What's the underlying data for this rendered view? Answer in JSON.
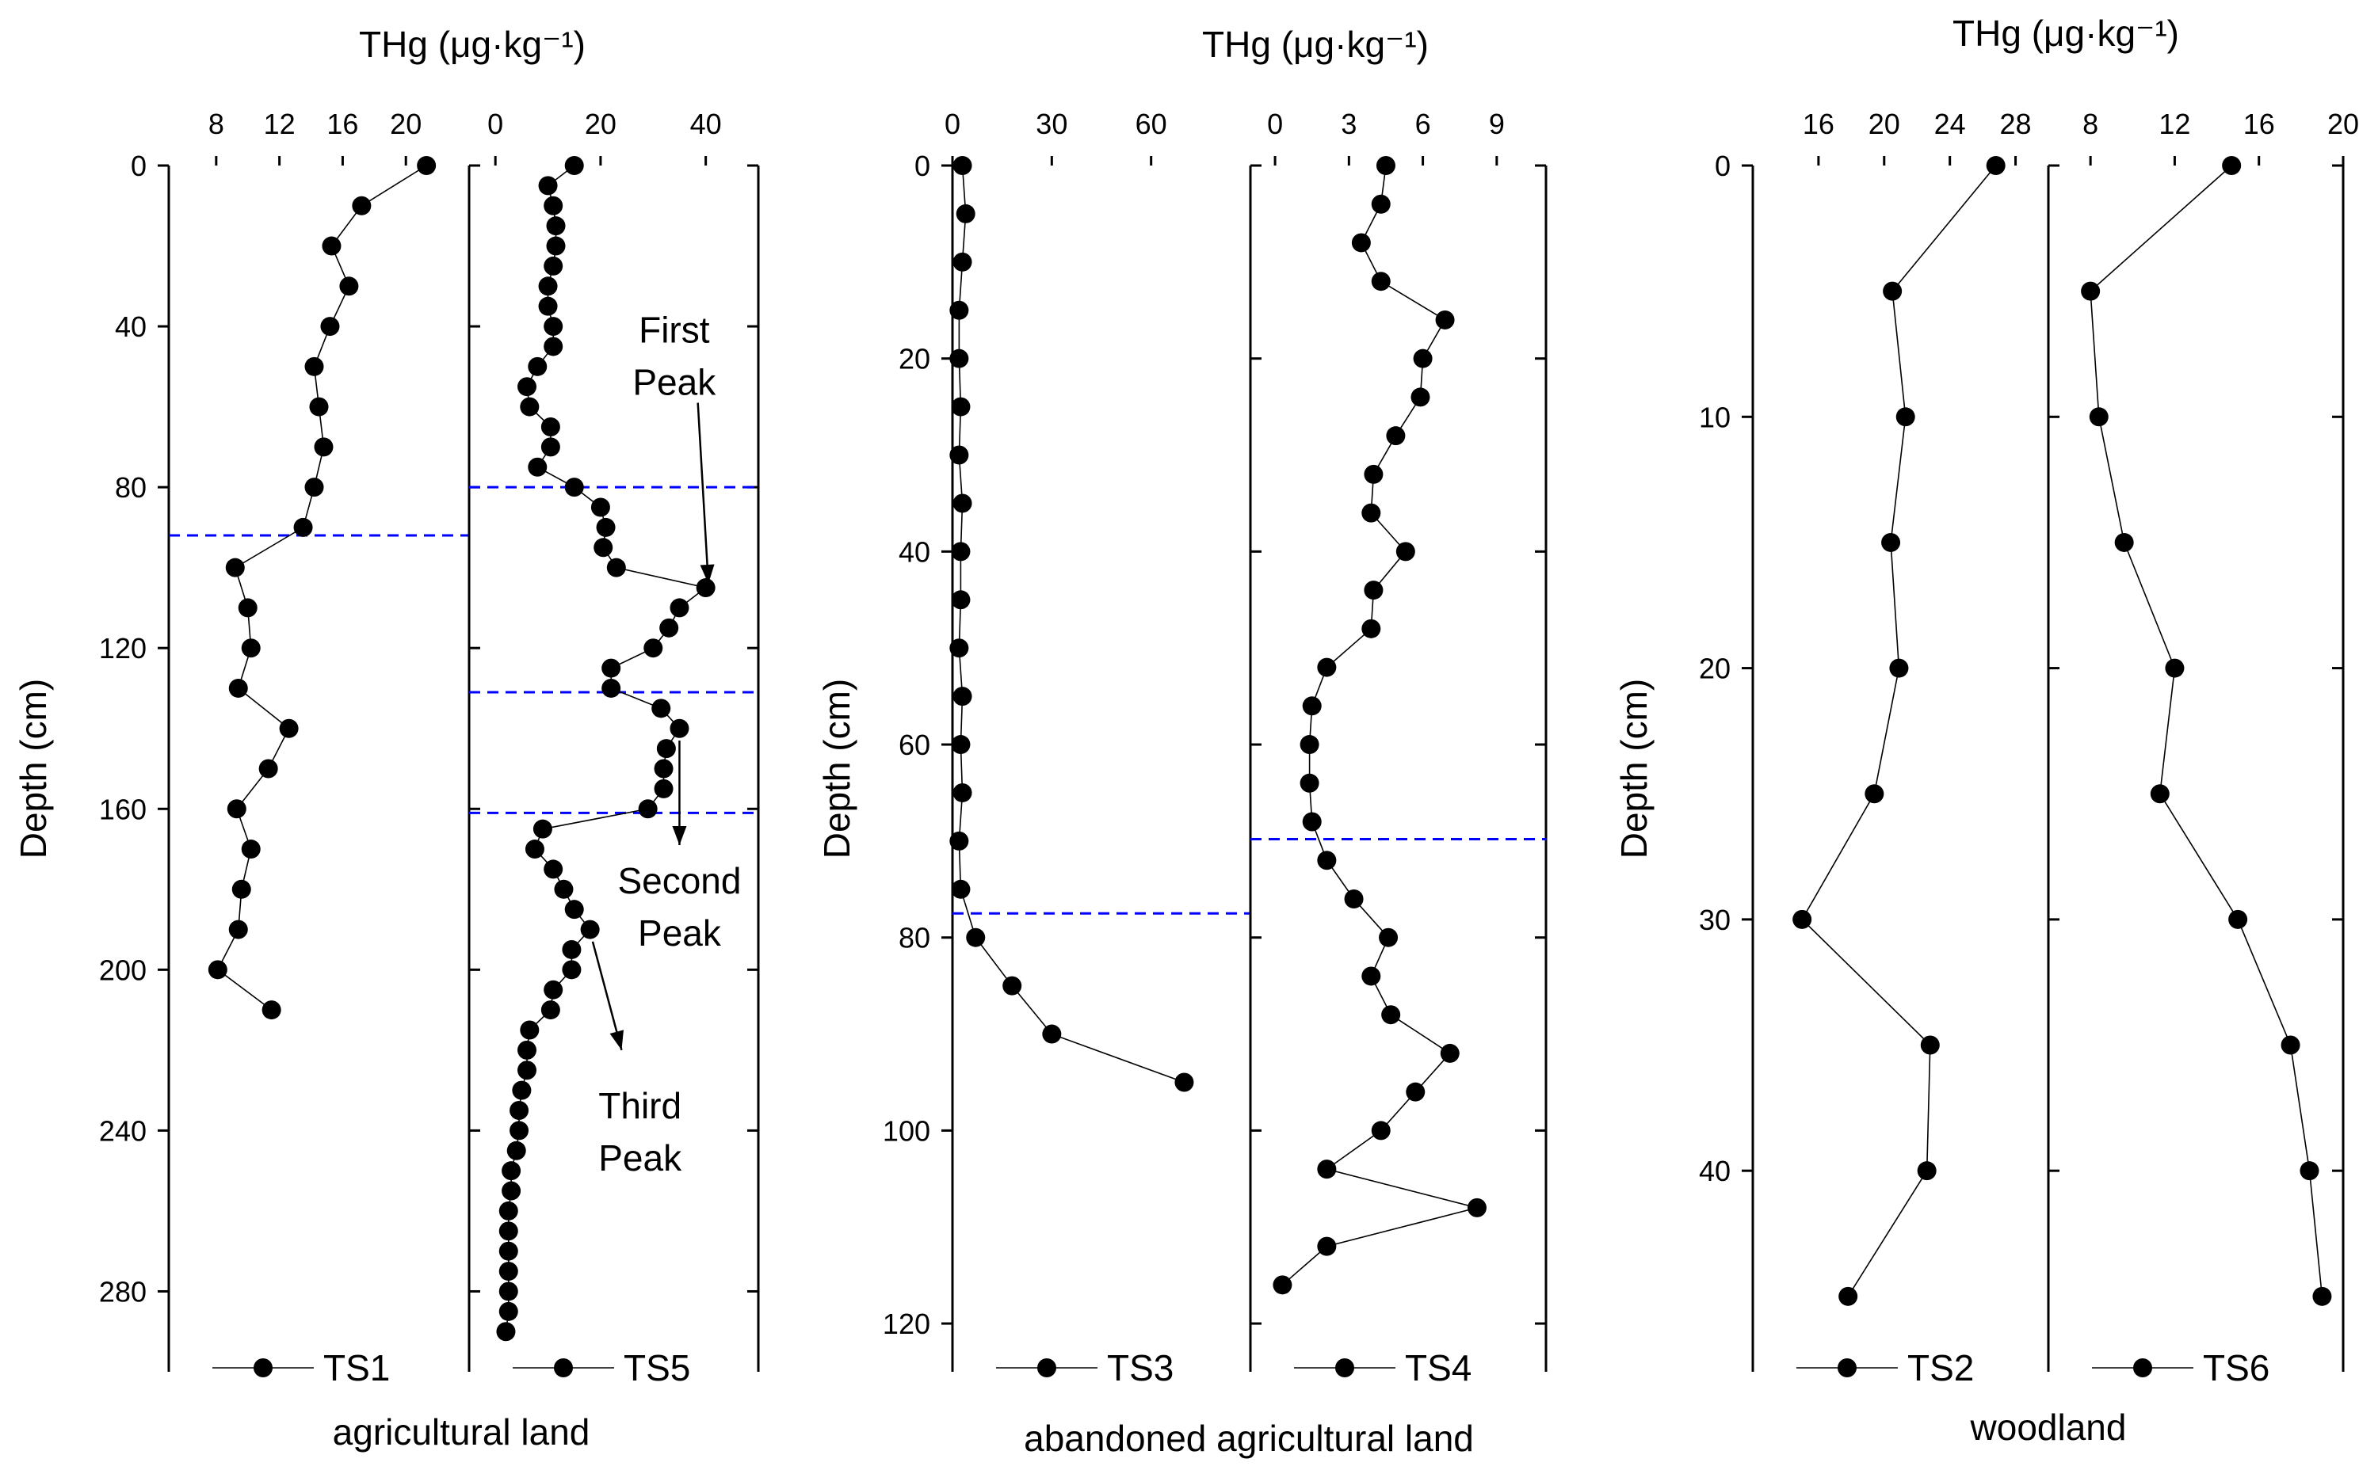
{
  "figure": {
    "group_labels": {
      "agricultural": "agricultural land",
      "abandoned": "abandoned agricultural land",
      "woodland": "woodland"
    },
    "top_axis_label": "THg (μg·kg⁻¹)",
    "y_label": "Depth (cm)",
    "colors": {
      "points": "#000000",
      "boundary": "#0000FF"
    }
  },
  "chart_data": [
    {
      "type": "scatter-line",
      "group": "agricultural",
      "ylabel": "Depth (cm)",
      "ylim": [
        0,
        300
      ],
      "yticks": [
        0,
        40,
        80,
        120,
        160,
        200,
        240,
        280
      ],
      "panels": [
        {
          "series": "TS1",
          "xlabel": "THg (μg·kg⁻¹)",
          "xlim": [
            5,
            24
          ],
          "xticks": [
            8,
            12,
            16,
            20
          ],
          "points": [
            {
              "x": 21.3,
              "y": 0
            },
            {
              "x": 17.2,
              "y": 10
            },
            {
              "x": 15.3,
              "y": 20
            },
            {
              "x": 16.4,
              "y": 30
            },
            {
              "x": 15.2,
              "y": 40
            },
            {
              "x": 14.2,
              "y": 50
            },
            {
              "x": 14.5,
              "y": 60
            },
            {
              "x": 14.8,
              "y": 70
            },
            {
              "x": 14.2,
              "y": 80
            },
            {
              "x": 13.5,
              "y": 90
            },
            {
              "x": 9.2,
              "y": 100
            },
            {
              "x": 10.0,
              "y": 110
            },
            {
              "x": 10.2,
              "y": 120
            },
            {
              "x": 9.4,
              "y": 130
            },
            {
              "x": 12.6,
              "y": 140
            },
            {
              "x": 11.3,
              "y": 150
            },
            {
              "x": 9.3,
              "y": 160
            },
            {
              "x": 10.2,
              "y": 170
            },
            {
              "x": 9.6,
              "y": 180
            },
            {
              "x": 9.4,
              "y": 190
            },
            {
              "x": 8.1,
              "y": 200
            },
            {
              "x": 11.5,
              "y": 210
            }
          ],
          "boundaries": [
            92
          ],
          "legend": "TS1"
        },
        {
          "series": "TS5",
          "xlabel": "",
          "xlim": [
            -5,
            50
          ],
          "xticks": [
            0,
            20,
            40
          ],
          "points": [
            {
              "x": 15,
              "y": 0
            },
            {
              "x": 10,
              "y": 5
            },
            {
              "x": 11,
              "y": 10
            },
            {
              "x": 11.5,
              "y": 15
            },
            {
              "x": 11.5,
              "y": 20
            },
            {
              "x": 11,
              "y": 25
            },
            {
              "x": 10,
              "y": 30
            },
            {
              "x": 10,
              "y": 35
            },
            {
              "x": 11,
              "y": 40
            },
            {
              "x": 11,
              "y": 45
            },
            {
              "x": 8,
              "y": 50
            },
            {
              "x": 6,
              "y": 55
            },
            {
              "x": 6.5,
              "y": 60
            },
            {
              "x": 10.5,
              "y": 65
            },
            {
              "x": 10.5,
              "y": 70
            },
            {
              "x": 8,
              "y": 75
            },
            {
              "x": 15,
              "y": 80
            },
            {
              "x": 20,
              "y": 85
            },
            {
              "x": 21,
              "y": 90
            },
            {
              "x": 20.5,
              "y": 95
            },
            {
              "x": 23,
              "y": 100
            },
            {
              "x": 40,
              "y": 105
            },
            {
              "x": 35,
              "y": 110
            },
            {
              "x": 33,
              "y": 115
            },
            {
              "x": 30,
              "y": 120
            },
            {
              "x": 22,
              "y": 125
            },
            {
              "x": 22,
              "y": 130
            },
            {
              "x": 31.5,
              "y": 135
            },
            {
              "x": 35,
              "y": 140
            },
            {
              "x": 32.5,
              "y": 145
            },
            {
              "x": 32,
              "y": 150
            },
            {
              "x": 32,
              "y": 155
            },
            {
              "x": 29,
              "y": 160
            },
            {
              "x": 9,
              "y": 165
            },
            {
              "x": 7.5,
              "y": 170
            },
            {
              "x": 11,
              "y": 175
            },
            {
              "x": 13,
              "y": 180
            },
            {
              "x": 15,
              "y": 185
            },
            {
              "x": 18,
              "y": 190
            },
            {
              "x": 14.5,
              "y": 195
            },
            {
              "x": 14.5,
              "y": 200
            },
            {
              "x": 11,
              "y": 205
            },
            {
              "x": 10.5,
              "y": 210
            },
            {
              "x": 6.5,
              "y": 215
            },
            {
              "x": 6,
              "y": 220
            },
            {
              "x": 6,
              "y": 225
            },
            {
              "x": 5,
              "y": 230
            },
            {
              "x": 4.5,
              "y": 235
            },
            {
              "x": 4.5,
              "y": 240
            },
            {
              "x": 4,
              "y": 245
            },
            {
              "x": 3,
              "y": 250
            },
            {
              "x": 3,
              "y": 255
            },
            {
              "x": 2.5,
              "y": 260
            },
            {
              "x": 2.5,
              "y": 265
            },
            {
              "x": 2.5,
              "y": 270
            },
            {
              "x": 2.5,
              "y": 275
            },
            {
              "x": 2.5,
              "y": 280
            },
            {
              "x": 2.5,
              "y": 285
            },
            {
              "x": 2,
              "y": 290
            }
          ],
          "boundaries": [
            80,
            131,
            161
          ],
          "legend": "TS5",
          "annotations": [
            {
              "id": "first",
              "lines": [
                "First",
                "Peak"
              ],
              "text_at": [
                34,
                44
              ],
              "arrow_from": [
                38.5,
                59
              ],
              "arrow_to": [
                40.5,
                104
              ]
            },
            {
              "id": "second",
              "lines": [
                "Second",
                "Peak"
              ],
              "text_at": [
                35,
                181
              ],
              "arrow_from": [
                35,
                143
              ],
              "arrow_to": [
                35,
                169
              ]
            },
            {
              "id": "third",
              "lines": [
                "Third",
                "Peak"
              ],
              "text_at": [
                27.5,
                237
              ],
              "arrow_from": [
                18.5,
                193
              ],
              "arrow_to": [
                24,
                220
              ]
            }
          ]
        }
      ]
    },
    {
      "type": "scatter-line",
      "group": "abandoned",
      "ylabel": "Depth (cm)",
      "ylim": [
        0,
        125
      ],
      "yticks": [
        0,
        20,
        40,
        60,
        80,
        100,
        120
      ],
      "panels": [
        {
          "series": "TS3",
          "xlabel": "THg (μg·kg⁻¹)",
          "xlim": [
            0,
            90
          ],
          "xticks": [
            0,
            30,
            60
          ],
          "points": [
            {
              "x": 3,
              "y": 0
            },
            {
              "x": 4,
              "y": 5
            },
            {
              "x": 3,
              "y": 10
            },
            {
              "x": 2,
              "y": 15
            },
            {
              "x": 2,
              "y": 20
            },
            {
              "x": 2.5,
              "y": 25
            },
            {
              "x": 2,
              "y": 30
            },
            {
              "x": 3,
              "y": 35
            },
            {
              "x": 2.5,
              "y": 40
            },
            {
              "x": 2.5,
              "y": 45
            },
            {
              "x": 2,
              "y": 50
            },
            {
              "x": 3,
              "y": 55
            },
            {
              "x": 2.5,
              "y": 60
            },
            {
              "x": 3,
              "y": 65
            },
            {
              "x": 2,
              "y": 70
            },
            {
              "x": 2.5,
              "y": 75
            },
            {
              "x": 7,
              "y": 80
            },
            {
              "x": 18,
              "y": 85
            },
            {
              "x": 30,
              "y": 90
            },
            {
              "x": 70,
              "y": 95
            }
          ],
          "boundaries": [
            77.5
          ],
          "legend": "TS3"
        },
        {
          "series": "TS4",
          "xlabel": "",
          "xlim": [
            -1,
            11
          ],
          "xticks": [
            0,
            3,
            6,
            9
          ],
          "points": [
            {
              "x": 4.5,
              "y": 0
            },
            {
              "x": 4.3,
              "y": 4
            },
            {
              "x": 3.5,
              "y": 8
            },
            {
              "x": 4.3,
              "y": 12
            },
            {
              "x": 6.9,
              "y": 16
            },
            {
              "x": 6.0,
              "y": 20
            },
            {
              "x": 5.9,
              "y": 24
            },
            {
              "x": 4.9,
              "y": 28
            },
            {
              "x": 4.0,
              "y": 32
            },
            {
              "x": 3.9,
              "y": 36
            },
            {
              "x": 5.3,
              "y": 40
            },
            {
              "x": 4.0,
              "y": 44
            },
            {
              "x": 3.9,
              "y": 48
            },
            {
              "x": 2.1,
              "y": 52
            },
            {
              "x": 1.5,
              "y": 56
            },
            {
              "x": 1.4,
              "y": 60
            },
            {
              "x": 1.4,
              "y": 64
            },
            {
              "x": 1.5,
              "y": 68
            },
            {
              "x": 2.1,
              "y": 72
            },
            {
              "x": 3.2,
              "y": 76
            },
            {
              "x": 4.6,
              "y": 80
            },
            {
              "x": 3.9,
              "y": 84
            },
            {
              "x": 4.7,
              "y": 88
            },
            {
              "x": 7.1,
              "y": 92
            },
            {
              "x": 5.7,
              "y": 96
            },
            {
              "x": 4.3,
              "y": 100
            },
            {
              "x": 2.1,
              "y": 104
            },
            {
              "x": 8.2,
              "y": 108
            },
            {
              "x": 2.1,
              "y": 112
            },
            {
              "x": 0.3,
              "y": 116
            }
          ],
          "boundaries": [
            69.8
          ],
          "legend": "TS4"
        }
      ]
    },
    {
      "type": "scatter-line",
      "group": "woodland",
      "ylabel": "Depth (cm)",
      "ylim": [
        0,
        48
      ],
      "yticks": [
        0,
        10,
        20,
        30,
        40
      ],
      "panels": [
        {
          "series": "TS2",
          "xlabel": "THg (μg·kg⁻¹)",
          "xlim": [
            12,
            30
          ],
          "xticks": [
            16,
            20,
            24,
            28
          ],
          "points": [
            {
              "x": 26.8,
              "y": 0
            },
            {
              "x": 20.5,
              "y": 5
            },
            {
              "x": 21.3,
              "y": 10
            },
            {
              "x": 20.4,
              "y": 15
            },
            {
              "x": 20.9,
              "y": 20
            },
            {
              "x": 19.4,
              "y": 25
            },
            {
              "x": 15.0,
              "y": 30
            },
            {
              "x": 22.8,
              "y": 35
            },
            {
              "x": 22.6,
              "y": 40
            },
            {
              "x": 17.8,
              "y": 45
            }
          ],
          "boundaries": [],
          "legend": "TS2"
        },
        {
          "series": "TS6",
          "xlabel": "",
          "xlim": [
            6,
            20
          ],
          "xticks": [
            8,
            12,
            16,
            20
          ],
          "points": [
            {
              "x": 14.7,
              "y": 0
            },
            {
              "x": 8.0,
              "y": 5
            },
            {
              "x": 8.4,
              "y": 10
            },
            {
              "x": 9.6,
              "y": 15
            },
            {
              "x": 12.0,
              "y": 20
            },
            {
              "x": 11.3,
              "y": 25
            },
            {
              "x": 15.0,
              "y": 30
            },
            {
              "x": 17.5,
              "y": 35
            },
            {
              "x": 18.4,
              "y": 40
            },
            {
              "x": 19.0,
              "y": 45
            }
          ],
          "boundaries": [],
          "legend": "TS6"
        }
      ]
    }
  ]
}
